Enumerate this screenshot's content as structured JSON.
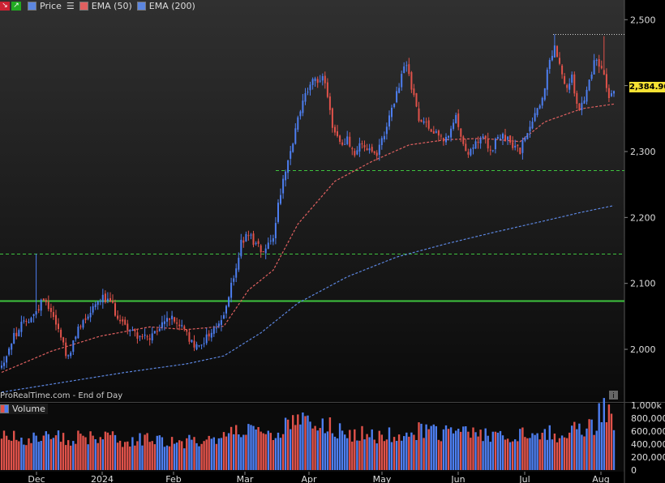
{
  "toolbar": {
    "legend": [
      {
        "label": "Price",
        "color": "#e06060",
        "swatch": "#5c86e0"
      },
      {
        "label": "EMA (50)",
        "color": "#e06060",
        "swatch": "#e06060"
      },
      {
        "label": "EMA (200)",
        "color": "#5c86e0",
        "swatch": "#5c86e0"
      }
    ],
    "icons": [
      "down-arrow-icon",
      "up-arrow-icon",
      "menu-icon"
    ]
  },
  "source_label": "ProRealTime.com - End of Day",
  "volume_label": "Volume",
  "colors": {
    "up": "#4d7ef0",
    "down": "#e0524a",
    "ema50": "#e06060",
    "ema200": "#5c86e0",
    "support": "#3ec43e",
    "resistance_dotted": "#d0d0d0",
    "price_tag": "#f5e133"
  },
  "chart_data": {
    "type": "candlestick",
    "title": "",
    "ylim": [
      1930,
      2520
    ],
    "y_ticks": [
      "2,500",
      "2,400",
      "2,300",
      "2,200",
      "2,100",
      "2,000"
    ],
    "x_ticks": [
      "Dec",
      "2024",
      "Feb",
      "Mar",
      "Apr",
      "May",
      "Jun",
      "Jul",
      "Aug"
    ],
    "last_price": "2,384.90",
    "levels": [
      {
        "name": "resistance",
        "value": 2478,
        "style": "dotted",
        "color": "#d0d0d0"
      },
      {
        "name": "support-1",
        "value": 2272,
        "style": "dashed",
        "color": "#3ec43e"
      },
      {
        "name": "support-2",
        "value": 2145,
        "style": "dashed",
        "color": "#3ec43e"
      },
      {
        "name": "support-main",
        "value": 2074,
        "style": "solid",
        "color": "#3ec43e"
      }
    ],
    "anchors": [
      [
        0,
        1975
      ],
      [
        5,
        2020
      ],
      [
        10,
        2045
      ],
      [
        14,
        2055
      ],
      [
        17,
        2080
      ],
      [
        20,
        2060
      ],
      [
        24,
        2020
      ],
      [
        27,
        1985
      ],
      [
        31,
        2030
      ],
      [
        35,
        2055
      ],
      [
        40,
        2080
      ],
      [
        44,
        2070
      ],
      [
        48,
        2045
      ],
      [
        52,
        2030
      ],
      [
        56,
        2020
      ],
      [
        60,
        2015
      ],
      [
        64,
        2030
      ],
      [
        67,
        2050
      ],
      [
        71,
        2040
      ],
      [
        75,
        2025
      ],
      [
        78,
        2000
      ],
      [
        82,
        2015
      ],
      [
        86,
        2030
      ],
      [
        90,
        2050
      ],
      [
        94,
        2110
      ],
      [
        97,
        2160
      ],
      [
        100,
        2175
      ],
      [
        103,
        2160
      ],
      [
        106,
        2150
      ],
      [
        110,
        2175
      ],
      [
        113,
        2240
      ],
      [
        116,
        2280
      ],
      [
        119,
        2330
      ],
      [
        122,
        2380
      ],
      [
        125,
        2400
      ],
      [
        128,
        2410
      ],
      [
        131,
        2410
      ],
      [
        134,
        2340
      ],
      [
        137,
        2310
      ],
      [
        140,
        2320
      ],
      [
        143,
        2300
      ],
      [
        146,
        2310
      ],
      [
        149,
        2300
      ],
      [
        152,
        2290
      ],
      [
        155,
        2330
      ],
      [
        158,
        2360
      ],
      [
        161,
        2400
      ],
      [
        163,
        2430
      ],
      [
        165,
        2420
      ],
      [
        167,
        2380
      ],
      [
        170,
        2340
      ],
      [
        173,
        2340
      ],
      [
        176,
        2330
      ],
      [
        179,
        2320
      ],
      [
        182,
        2330
      ],
      [
        184,
        2350
      ],
      [
        186,
        2320
      ],
      [
        189,
        2300
      ],
      [
        192,
        2310
      ],
      [
        195,
        2320
      ],
      [
        198,
        2300
      ],
      [
        201,
        2320
      ],
      [
        204,
        2320
      ],
      [
        207,
        2310
      ],
      [
        210,
        2300
      ],
      [
        213,
        2330
      ],
      [
        216,
        2360
      ],
      [
        219,
        2380
      ],
      [
        222,
        2440
      ],
      [
        224,
        2460
      ],
      [
        226,
        2440
      ],
      [
        228,
        2400
      ],
      [
        231,
        2410
      ],
      [
        234,
        2360
      ],
      [
        237,
        2390
      ],
      [
        240,
        2440
      ],
      [
        243,
        2430
      ],
      [
        246,
        2380
      ],
      [
        248,
        2384.9
      ]
    ],
    "ema50_anchors": [
      [
        0,
        1965
      ],
      [
        20,
        1997
      ],
      [
        40,
        2020
      ],
      [
        60,
        2034
      ],
      [
        75,
        2030
      ],
      [
        90,
        2035
      ],
      [
        100,
        2090
      ],
      [
        110,
        2120
      ],
      [
        120,
        2190
      ],
      [
        135,
        2255
      ],
      [
        150,
        2285
      ],
      [
        165,
        2310
      ],
      [
        180,
        2318
      ],
      [
        195,
        2320
      ],
      [
        210,
        2315
      ],
      [
        220,
        2345
      ],
      [
        235,
        2365
      ],
      [
        248,
        2372
      ]
    ],
    "ema200_anchors": [
      [
        0,
        1935
      ],
      [
        25,
        1950
      ],
      [
        50,
        1965
      ],
      [
        75,
        1978
      ],
      [
        90,
        1990
      ],
      [
        105,
        2025
      ],
      [
        120,
        2070
      ],
      [
        140,
        2110
      ],
      [
        160,
        2140
      ],
      [
        180,
        2160
      ],
      [
        200,
        2178
      ],
      [
        220,
        2195
      ],
      [
        235,
        2208
      ],
      [
        248,
        2218
      ]
    ],
    "volume": {
      "ylim": [
        0,
        1000000
      ],
      "ticks": [
        "1,000k",
        "800,000",
        "600,000",
        "400,000",
        "200,000",
        "0"
      ],
      "anchors": [
        [
          0,
          520000
        ],
        [
          30,
          500000
        ],
        [
          60,
          460000
        ],
        [
          85,
          420000
        ],
        [
          95,
          560000
        ],
        [
          110,
          600000
        ],
        [
          120,
          720000
        ],
        [
          130,
          700000
        ],
        [
          140,
          560000
        ],
        [
          160,
          520000
        ],
        [
          170,
          620000
        ],
        [
          180,
          580000
        ],
        [
          200,
          500000
        ],
        [
          220,
          560000
        ],
        [
          230,
          580000
        ],
        [
          240,
          700000
        ],
        [
          244,
          980000
        ],
        [
          246,
          900000
        ],
        [
          248,
          650000
        ]
      ]
    }
  }
}
